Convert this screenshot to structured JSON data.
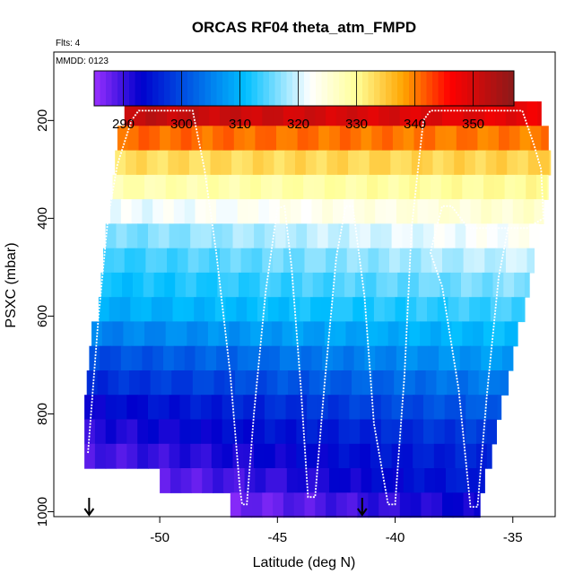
{
  "chart_data": {
    "type": "heatmap",
    "title": "ORCAS RF04 theta_atm_FMPD",
    "annotations": [
      "Flts: 4",
      "MMDD: 0123"
    ],
    "xlabel": "Latitude (deg N)",
    "ylabel": "PSXC (mbar)",
    "xlim": [
      -54.5,
      -33.2
    ],
    "ylim": [
      1010,
      60
    ],
    "y_reversed": true,
    "x_ticks": [
      -50,
      -45,
      -40,
      -35
    ],
    "x_tick_labels": [
      "-50",
      "-45",
      "-40",
      "-35"
    ],
    "y_ticks": [
      200,
      400,
      600,
      800,
      1000
    ],
    "y_tick_labels": [
      "200",
      "400",
      "600",
      "800",
      "1000"
    ],
    "colorbar": {
      "min": 285,
      "max": 357,
      "ticks": [
        290,
        300,
        310,
        320,
        330,
        340,
        350
      ],
      "tick_labels": [
        "290",
        "300",
        "310",
        "320",
        "330",
        "340",
        "350"
      ],
      "colors": [
        "#9b30ff",
        "#0000cd",
        "#00bfff",
        "#ffffff",
        "#ffff99",
        "#ffa500",
        "#ff0000",
        "#8b1a1a"
      ],
      "color_stops": [
        285,
        293,
        311,
        322,
        330,
        338,
        346,
        357
      ]
    },
    "bands": [
      {
        "p_center": 186,
        "lat_start": -51.5,
        "lat_end": -33.8,
        "theta_start": 352,
        "theta_end": 348
      },
      {
        "p_center": 236,
        "lat_start": -51.8,
        "lat_end": -33.5,
        "theta_start": 341,
        "theta_end": 340
      },
      {
        "p_center": 286,
        "lat_start": -51.9,
        "lat_end": -33.4,
        "theta_start": 333,
        "theta_end": 334
      },
      {
        "p_center": 336,
        "lat_start": -52.0,
        "lat_end": -33.5,
        "theta_start": 328,
        "theta_end": 330
      },
      {
        "p_center": 386,
        "lat_start": -52.1,
        "lat_end": -33.7,
        "theta_start": 321,
        "theta_end": 326
      },
      {
        "p_center": 436,
        "lat_start": -52.3,
        "lat_end": -33.9,
        "theta_start": 316,
        "theta_end": 323
      },
      {
        "p_center": 486,
        "lat_start": -52.4,
        "lat_end": -34.1,
        "theta_start": 313,
        "theta_end": 320
      },
      {
        "p_center": 536,
        "lat_start": -52.5,
        "lat_end": -34.3,
        "theta_start": 311,
        "theta_end": 317
      },
      {
        "p_center": 586,
        "lat_start": -52.6,
        "lat_end": -34.5,
        "theta_start": 309,
        "theta_end": 314
      },
      {
        "p_center": 636,
        "lat_start": -52.9,
        "lat_end": -34.8,
        "theta_start": 305,
        "theta_end": 311
      },
      {
        "p_center": 686,
        "lat_start": -53.0,
        "lat_end": -35.0,
        "theta_start": 300,
        "theta_end": 308
      },
      {
        "p_center": 736,
        "lat_start": -53.1,
        "lat_end": -35.2,
        "theta_start": 297,
        "theta_end": 305
      },
      {
        "p_center": 786,
        "lat_start": -53.2,
        "lat_end": -35.5,
        "theta_start": 293,
        "theta_end": 302
      },
      {
        "p_center": 836,
        "lat_start": -53.2,
        "lat_end": -35.7,
        "theta_start": 291,
        "theta_end": 299
      },
      {
        "p_center": 886,
        "lat_start": -53.2,
        "lat_end": -35.9,
        "theta_start": 289,
        "theta_end": 297
      },
      {
        "p_center": 936,
        "lat_start": -50.0,
        "lat_end": -36.2,
        "theta_start": 288,
        "theta_end": 296
      },
      {
        "p_center": 986,
        "lat_start": -47.0,
        "lat_end": -36.4,
        "theta_start": 287,
        "theta_end": 293
      }
    ],
    "flight_track": [
      [
        -53.05,
        880
      ],
      [
        -52.6,
        600
      ],
      [
        -52.2,
        400
      ],
      [
        -51.8,
        290
      ],
      [
        -51.2,
        200
      ],
      [
        -50.9,
        180
      ],
      [
        -48.6,
        180
      ],
      [
        -48.1,
        300
      ],
      [
        -47.6,
        470
      ],
      [
        -47.0,
        720
      ],
      [
        -46.6,
        950
      ],
      [
        -46.5,
        985
      ],
      [
        -46.3,
        985
      ],
      [
        -46.0,
        800
      ],
      [
        -45.5,
        550
      ],
      [
        -45.0,
        380
      ],
      [
        -44.7,
        375
      ],
      [
        -44.4,
        500
      ],
      [
        -44.0,
        750
      ],
      [
        -43.7,
        970
      ],
      [
        -43.4,
        970
      ],
      [
        -43.0,
        740
      ],
      [
        -42.5,
        480
      ],
      [
        -42.1,
        375
      ],
      [
        -41.8,
        375
      ],
      [
        -41.3,
        560
      ],
      [
        -40.9,
        820
      ],
      [
        -40.3,
        985
      ],
      [
        -40.0,
        985
      ],
      [
        -39.6,
        720
      ],
      [
        -39.3,
        420
      ],
      [
        -38.8,
        200
      ],
      [
        -38.5,
        180
      ],
      [
        -34.6,
        180
      ],
      [
        -34.1,
        250
      ],
      [
        -33.8,
        300
      ],
      [
        -33.7,
        400
      ],
      [
        -34.4,
        420
      ],
      [
        -36.9,
        420
      ],
      [
        -37.6,
        375
      ],
      [
        -38.0,
        375
      ],
      [
        -38.4,
        450
      ],
      [
        -38.5,
        470
      ],
      [
        -38.0,
        540
      ],
      [
        -37.3,
        750
      ],
      [
        -36.8,
        990
      ],
      [
        -36.5,
        990
      ],
      [
        -36.1,
        760
      ],
      [
        -35.6,
        520
      ],
      [
        -35.2,
        420
      ]
    ],
    "markers": [
      {
        "lat": -53.0,
        "label": "down-arrow"
      },
      {
        "lat": -41.4,
        "label": "down-arrow"
      }
    ]
  }
}
